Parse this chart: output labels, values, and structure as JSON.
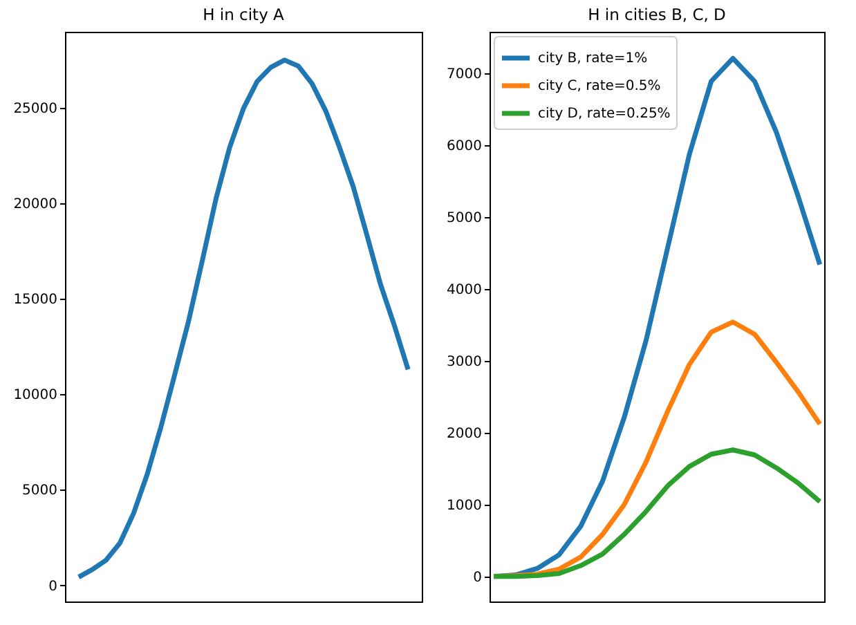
{
  "chart_data": [
    {
      "type": "line",
      "title": "H in city A",
      "categories": [
        null,
        null,
        null,
        null,
        null,
        null,
        null,
        null,
        null,
        null,
        null,
        null,
        null,
        null,
        null,
        null,
        null,
        null,
        null,
        null,
        null,
        null,
        null,
        null,
        null
      ],
      "series": [
        {
          "color": "#1f77b4",
          "values": [
            430,
            830,
            1320,
            2210,
            3770,
            5830,
            8310,
            11040,
            13820,
            16980,
            20230,
            22930,
            24960,
            26380,
            27120,
            27500,
            27190,
            26270,
            24840,
            22940,
            20880,
            18340,
            15740,
            13610,
            11300
          ]
        }
      ],
      "ylim": [
        -850,
        28980
      ],
      "yticks": [
        0,
        5000,
        10000,
        15000,
        20000,
        25000
      ],
      "tick_labels": "y",
      "grid": false,
      "legend": false
    },
    {
      "type": "line",
      "title": "H in cities B, C, D",
      "categories": [
        null,
        null,
        null,
        null,
        null,
        null,
        null,
        null,
        null,
        null,
        null,
        null,
        null,
        null,
        null,
        null
      ],
      "series": [
        {
          "name": "city B, rate=1%",
          "color": "#1f77b4",
          "values": [
            0,
            20,
            110,
            300,
            700,
            1324,
            2215,
            3280,
            4580,
            5880,
            6890,
            7210,
            6890,
            6180,
            5290,
            4340
          ]
        },
        {
          "name": "city C, rate=0.5%",
          "color": "#ff7f0e",
          "values": [
            0,
            10,
            30,
            100,
            270,
            584,
            1000,
            1590,
            2300,
            2950,
            3400,
            3540,
            3370,
            2980,
            2570,
            2120
          ]
        },
        {
          "name": "city D, rate=0.25%",
          "color": "#2ca02c",
          "values": [
            0,
            0,
            10,
            40,
            150,
            310,
            584,
            903,
            1260,
            1530,
            1700,
            1760,
            1690,
            1510,
            1300,
            1040
          ]
        }
      ],
      "ylim": [
        -350,
        7580
      ],
      "yticks": [
        0,
        1000,
        2000,
        3000,
        4000,
        5000,
        6000,
        7000
      ],
      "tick_labels": "y",
      "grid": false,
      "legend": "top left"
    }
  ]
}
